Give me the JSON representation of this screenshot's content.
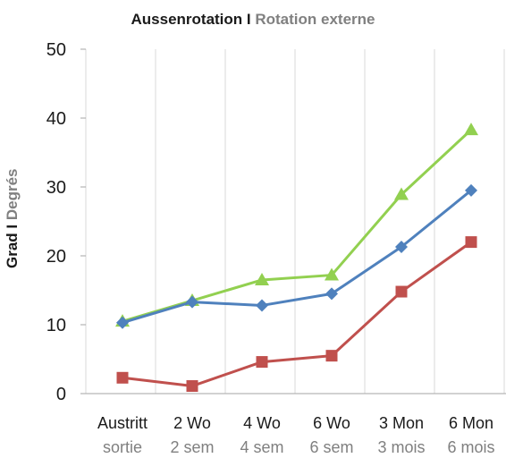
{
  "chart_data": {
    "type": "line",
    "title": "Aussenrotation I Rotation externe",
    "title_parts": [
      "Aussenrotation I",
      "Rotation externe"
    ],
    "ylabel": "Grad I Degrés",
    "ylabel_parts": [
      "Grad I",
      "Degrés"
    ],
    "xlabel": "",
    "ylim": [
      0,
      50
    ],
    "yticks": [
      0,
      10,
      20,
      30,
      40,
      50
    ],
    "categories": [
      "Austritt",
      "2 Wo",
      "4 Wo",
      "6 Wo",
      "3 Mon",
      "6 Mon"
    ],
    "categories_secondary": [
      "sortie",
      "2 sem",
      "4 sem",
      "6 sem",
      "3 mois",
      "6 mois"
    ],
    "grid": "vertical",
    "legend": "none",
    "series": [
      {
        "values": [
          10.5,
          13.5,
          16.5,
          17.2,
          28.9,
          38.3
        ],
        "color": "#92d050",
        "marker": "triangle"
      },
      {
        "values": [
          10.3,
          13.3,
          12.8,
          14.5,
          21.3,
          29.5
        ],
        "color": "#4f81bd",
        "marker": "diamond"
      },
      {
        "values": [
          2.3,
          1.1,
          4.6,
          5.5,
          14.8,
          22.0
        ],
        "color": "#c0504d",
        "marker": "square"
      }
    ]
  }
}
